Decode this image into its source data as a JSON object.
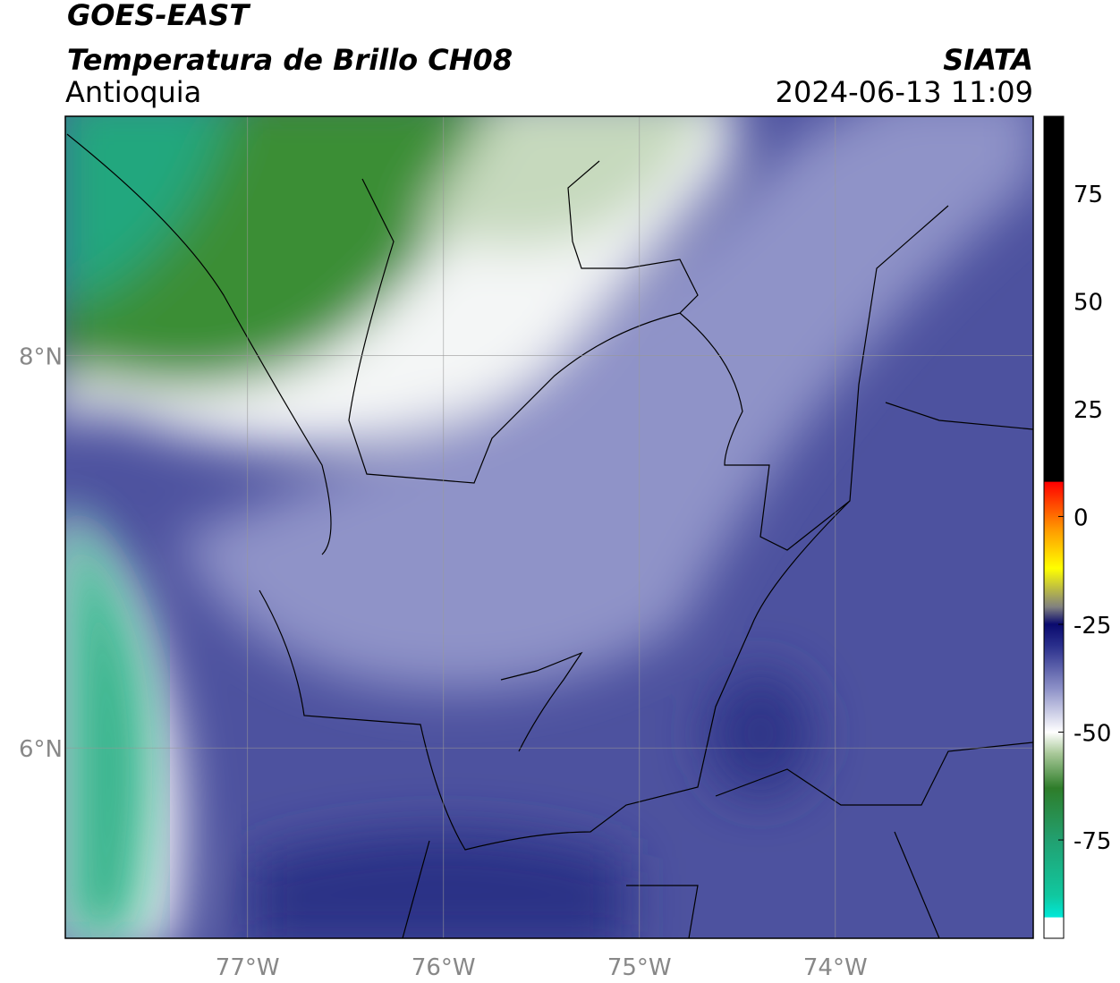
{
  "header": {
    "title": "GOES-EAST",
    "subtitle": "Temperatura de Brillo CH08",
    "region": "Antioquia",
    "source": "SIATA",
    "datetime": "2024-06-13 11:09"
  },
  "map": {
    "lon_lim": [
      -77.93,
      -72.99
    ],
    "lat_lim": [
      5.03,
      9.22
    ],
    "lon_ticks": [
      {
        "value": -77,
        "label": "77°W"
      },
      {
        "value": -76,
        "label": "76°W"
      },
      {
        "value": -75,
        "label": "75°W"
      },
      {
        "value": -74,
        "label": "74°W"
      }
    ],
    "lat_ticks": [
      {
        "value": 6,
        "label": "6°N"
      },
      {
        "value": 8,
        "label": "8°N"
      }
    ],
    "grid": true
  },
  "colorbar": {
    "lim": [
      -97.8,
      92.8
    ],
    "ticks": [
      -75,
      -50,
      -25,
      0,
      25,
      50,
      75
    ],
    "stops": [
      {
        "value": -97.8,
        "color": "#ffffff"
      },
      {
        "value": -93,
        "color": "#ffffff"
      },
      {
        "value": -92.9,
        "color": "#00e8d8"
      },
      {
        "value": -88,
        "color": "#10c8a0"
      },
      {
        "value": -75,
        "color": "#22a070"
      },
      {
        "value": -63,
        "color": "#2e7d2a"
      },
      {
        "value": -55,
        "color": "#a8c898"
      },
      {
        "value": -50,
        "color": "#ffffff"
      },
      {
        "value": -40,
        "color": "#8e92c8"
      },
      {
        "value": -30,
        "color": "#2a2f8c"
      },
      {
        "value": -25,
        "color": "#0a0a6e"
      },
      {
        "value": -21,
        "color": "#808080"
      },
      {
        "value": -12,
        "color": "#ffff00"
      },
      {
        "value": -3,
        "color": "#ff9900"
      },
      {
        "value": 8,
        "color": "#ff0000"
      },
      {
        "value": 8.1,
        "color": "#000000"
      },
      {
        "value": 92.8,
        "color": "#000000"
      }
    ]
  }
}
